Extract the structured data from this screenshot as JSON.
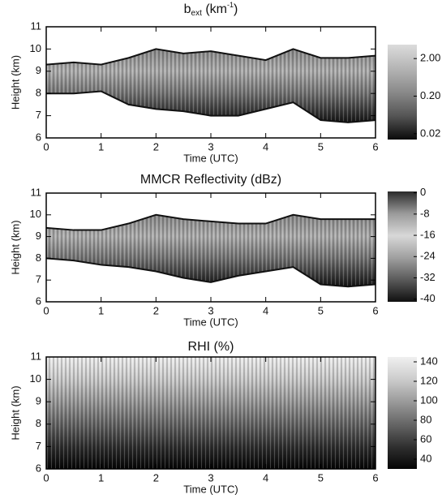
{
  "chart_data": [
    {
      "type": "heatmap",
      "title": "b",
      "title_sub": "ext",
      "title_unit": " (km",
      "title_sup": "-1",
      "title_end": ")",
      "xlabel": "Time (UTC)",
      "ylabel": "Height (km)",
      "xlim": [
        0,
        6
      ],
      "xticks": [
        0,
        1,
        2,
        3,
        4,
        5,
        6
      ],
      "ylim": [
        6,
        11
      ],
      "yticks": [
        6,
        7,
        8,
        9,
        10,
        11
      ],
      "x": [
        0,
        0.5,
        1,
        1.5,
        2,
        2.5,
        3,
        3.5,
        4,
        4.5,
        5,
        5.5,
        6
      ],
      "cloud_top": [
        9.3,
        9.4,
        9.3,
        9.6,
        10,
        9.8,
        9.9,
        9.7,
        9.5,
        10,
        9.6,
        9.6,
        9.7
      ],
      "cloud_base": [
        8,
        8,
        8.1,
        7.5,
        7.3,
        7.2,
        7,
        7,
        7.3,
        7.6,
        6.8,
        6.7,
        6.8
      ],
      "colorbar": {
        "log": true,
        "lim": [
          0.014,
          4.7
        ],
        "ticks": [
          {
            "value": 2,
            "label": "2.00"
          },
          {
            "value": 0.2,
            "label": "0.20"
          },
          {
            "value": 0.02,
            "label": "0.02"
          }
        ],
        "colors": [
          "#0a0a0a",
          "#555555",
          "#8a8a8a",
          "#b5b5b5",
          "#dcdcdc"
        ]
      }
    },
    {
      "type": "heatmap",
      "title": "MMCR Reflectivity (dBz)",
      "xlabel": "Time (UTC)",
      "ylabel": "Height (km)",
      "xlim": [
        0,
        6
      ],
      "xticks": [
        0,
        1,
        2,
        3,
        4,
        5,
        6
      ],
      "ylim": [
        6,
        11
      ],
      "yticks": [
        6,
        7,
        8,
        9,
        10,
        11
      ],
      "x": [
        0,
        0.5,
        1,
        1.5,
        2,
        2.5,
        3,
        3.5,
        4,
        4.5,
        5,
        5.5,
        6
      ],
      "cloud_top": [
        9.4,
        9.3,
        9.3,
        9.6,
        10,
        9.8,
        9.7,
        9.6,
        9.6,
        10,
        9.8,
        9.8,
        9.8
      ],
      "cloud_base": [
        8,
        7.9,
        7.7,
        7.6,
        7.4,
        7.1,
        6.9,
        7.2,
        7.4,
        7.6,
        6.8,
        6.7,
        6.8
      ],
      "colorbar": {
        "log": false,
        "lim": [
          -41,
          0.5
        ],
        "ticks": [
          0,
          -8,
          -16,
          -24,
          -32,
          -40
        ],
        "colors": [
          "#101010",
          "#5a5a5a",
          "#a0a0a0",
          "#d8d8d8",
          "#9a9a9a",
          "#2a2a2a"
        ]
      }
    },
    {
      "type": "heatmap",
      "title": "RHI (%)",
      "xlabel": "Time (UTC)",
      "ylabel": "Height (km)",
      "xlim": [
        0,
        6
      ],
      "xticks": [
        0,
        1,
        2,
        3,
        4,
        5,
        6
      ],
      "ylim": [
        6,
        11
      ],
      "yticks": [
        6,
        7,
        8,
        9,
        10,
        11
      ],
      "colorbar": {
        "log": false,
        "lim": [
          30,
          145
        ],
        "ticks": [
          140,
          120,
          100,
          80,
          60,
          40
        ],
        "colors": [
          "#050505",
          "#303030",
          "#666666",
          "#9a9a9a",
          "#cccccc",
          "#f0f0f0"
        ]
      }
    }
  ]
}
